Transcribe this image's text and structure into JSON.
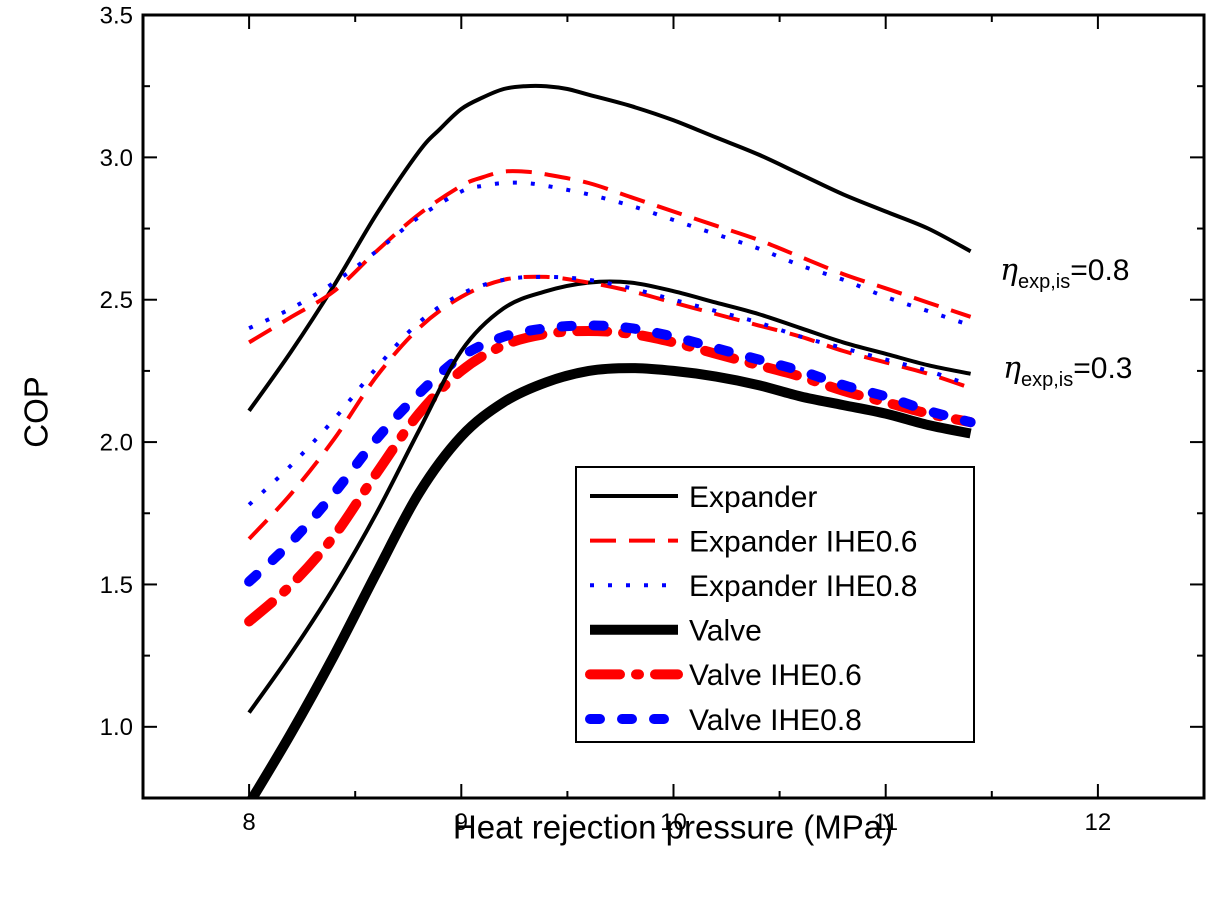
{
  "chart_data": {
    "type": "line",
    "title": "",
    "xlabel": "Heat rejection pressure (MPa)",
    "ylabel": "COP",
    "xlim": [
      7.5,
      12.5
    ],
    "ylim": [
      0.75,
      3.5
    ],
    "xticks": [
      8,
      9,
      10,
      11,
      12
    ],
    "xtick_labels": [
      "8",
      "9",
      "10",
      "11",
      "12"
    ],
    "yticks": [
      1.0,
      1.5,
      2.0,
      2.5,
      3.0,
      3.5
    ],
    "ytick_labels": [
      "1.0",
      "1.5",
      "2.0",
      "2.5",
      "3.0",
      "3.5"
    ],
    "grid": false,
    "legend_position": "bottom-center",
    "colors": {
      "black": "#000000",
      "red": "#ff0000",
      "blue": "#0000ff"
    },
    "series": [
      {
        "name": "Expander",
        "group": "0.8",
        "color": "#000000",
        "style": "solid",
        "x": [
          8.0,
          8.2,
          8.4,
          8.6,
          8.8,
          8.9,
          9.0,
          9.1,
          9.2,
          9.3,
          9.4,
          9.5,
          9.6,
          9.8,
          10.0,
          10.2,
          10.4,
          10.6,
          10.8,
          11.0,
          11.2,
          11.4
        ],
        "y": [
          2.11,
          2.32,
          2.55,
          2.8,
          3.02,
          3.1,
          3.17,
          3.21,
          3.24,
          3.25,
          3.25,
          3.24,
          3.22,
          3.18,
          3.13,
          3.07,
          3.01,
          2.94,
          2.87,
          2.81,
          2.75,
          2.67
        ]
      },
      {
        "name": "Expander IHE0.6",
        "group": "0.8",
        "color": "#ff0000",
        "style": "dashed",
        "x": [
          8.0,
          8.2,
          8.4,
          8.6,
          8.8,
          9.0,
          9.1,
          9.2,
          9.3,
          9.4,
          9.6,
          9.8,
          10.0,
          10.2,
          10.4,
          10.6,
          10.8,
          11.0,
          11.2,
          11.4
        ],
        "y": [
          2.35,
          2.44,
          2.53,
          2.67,
          2.8,
          2.9,
          2.93,
          2.95,
          2.95,
          2.94,
          2.91,
          2.86,
          2.81,
          2.76,
          2.71,
          2.65,
          2.59,
          2.54,
          2.49,
          2.44
        ]
      },
      {
        "name": "Expander IHE0.8",
        "group": "0.8",
        "color": "#0000ff",
        "style": "dotted",
        "x": [
          8.0,
          8.2,
          8.4,
          8.6,
          8.8,
          9.0,
          9.1,
          9.2,
          9.3,
          9.4,
          9.6,
          9.8,
          10.0,
          10.2,
          10.4,
          10.6,
          10.8,
          11.0,
          11.2,
          11.4
        ],
        "y": [
          2.4,
          2.47,
          2.56,
          2.67,
          2.79,
          2.88,
          2.9,
          2.91,
          2.91,
          2.9,
          2.87,
          2.83,
          2.78,
          2.73,
          2.68,
          2.62,
          2.57,
          2.51,
          2.46,
          2.41
        ]
      },
      {
        "name": "Valve",
        "group": "0.8",
        "color": "#000000",
        "style": "thick-solid",
        "x": [
          8.0,
          8.2,
          8.4,
          8.6,
          8.8,
          9.0,
          9.2,
          9.4,
          9.6,
          9.8,
          10.0,
          10.2,
          10.4,
          10.6,
          10.8,
          11.0,
          11.2,
          11.4
        ],
        "y": [
          0.73,
          0.98,
          1.25,
          1.54,
          1.82,
          2.02,
          2.14,
          2.21,
          2.25,
          2.26,
          2.25,
          2.23,
          2.2,
          2.16,
          2.13,
          2.1,
          2.06,
          2.03
        ]
      },
      {
        "name": "Valve IHE0.6",
        "group": "0.8",
        "color": "#ff0000",
        "style": "thick-dash-dot",
        "x": [
          8.0,
          8.2,
          8.4,
          8.6,
          8.8,
          9.0,
          9.2,
          9.4,
          9.6,
          9.8,
          10.0,
          10.2,
          10.4,
          10.6,
          10.8,
          11.0,
          11.2,
          11.4
        ],
        "y": [
          1.37,
          1.5,
          1.67,
          1.89,
          2.1,
          2.25,
          2.34,
          2.38,
          2.39,
          2.38,
          2.35,
          2.31,
          2.27,
          2.23,
          2.18,
          2.14,
          2.1,
          2.07
        ]
      },
      {
        "name": "Valve IHE0.8",
        "group": "0.8",
        "color": "#0000ff",
        "style": "thick-dashed",
        "x": [
          8.0,
          8.2,
          8.4,
          8.6,
          8.8,
          9.0,
          9.2,
          9.4,
          9.6,
          9.8,
          10.0,
          10.2,
          10.4,
          10.6,
          10.8,
          11.0,
          11.2,
          11.4
        ],
        "y": [
          1.51,
          1.65,
          1.82,
          2.01,
          2.17,
          2.3,
          2.37,
          2.4,
          2.41,
          2.4,
          2.37,
          2.33,
          2.29,
          2.25,
          2.2,
          2.16,
          2.11,
          2.07
        ]
      },
      {
        "name": "Expander",
        "group": "0.3",
        "color": "#000000",
        "style": "solid",
        "x": [
          8.0,
          8.2,
          8.4,
          8.6,
          8.8,
          9.0,
          9.2,
          9.4,
          9.6,
          9.8,
          10.0,
          10.2,
          10.4,
          10.6,
          10.8,
          11.0,
          11.2,
          11.4
        ],
        "y": [
          1.05,
          1.26,
          1.49,
          1.75,
          2.04,
          2.32,
          2.47,
          2.53,
          2.56,
          2.56,
          2.53,
          2.49,
          2.45,
          2.4,
          2.35,
          2.31,
          2.27,
          2.24
        ]
      },
      {
        "name": "Expander IHE0.6",
        "group": "0.3",
        "color": "#ff0000",
        "style": "dashed",
        "x": [
          8.0,
          8.2,
          8.4,
          8.6,
          8.8,
          9.0,
          9.2,
          9.4,
          9.6,
          9.8,
          10.0,
          10.2,
          10.4,
          10.6,
          10.8,
          11.0,
          11.2,
          11.4
        ],
        "y": [
          1.66,
          1.82,
          2.01,
          2.23,
          2.4,
          2.51,
          2.57,
          2.58,
          2.56,
          2.53,
          2.49,
          2.45,
          2.41,
          2.37,
          2.32,
          2.28,
          2.24,
          2.19
        ]
      },
      {
        "name": "Expander IHE0.8",
        "group": "0.3",
        "color": "#0000ff",
        "style": "dotted",
        "x": [
          8.0,
          8.2,
          8.4,
          8.6,
          8.8,
          9.0,
          9.2,
          9.4,
          9.6,
          9.8,
          10.0,
          10.2,
          10.4,
          10.6,
          10.8,
          11.0,
          11.2,
          11.4
        ],
        "y": [
          1.78,
          1.92,
          2.08,
          2.26,
          2.42,
          2.52,
          2.57,
          2.58,
          2.57,
          2.54,
          2.5,
          2.46,
          2.42,
          2.37,
          2.33,
          2.29,
          2.25,
          2.2
        ]
      }
    ],
    "legend": [
      {
        "label": "Expander",
        "color": "#000000",
        "style": "solid"
      },
      {
        "label": "Expander IHE0.6",
        "color": "#ff0000",
        "style": "dashed"
      },
      {
        "label": "Expander IHE0.8",
        "color": "#0000ff",
        "style": "dotted"
      },
      {
        "label": "Valve",
        "color": "#000000",
        "style": "thick-solid"
      },
      {
        "label": "Valve IHE0.6",
        "color": "#ff0000",
        "style": "thick-dash-dot"
      },
      {
        "label": "Valve IHE0.8",
        "color": "#0000ff",
        "style": "thick-dashed"
      }
    ],
    "annotations": [
      {
        "symbol": "η",
        "subscript": "exp,is",
        "value": "=0.8"
      },
      {
        "symbol": "η",
        "subscript": "exp,is",
        "value": "=0.3"
      }
    ]
  }
}
